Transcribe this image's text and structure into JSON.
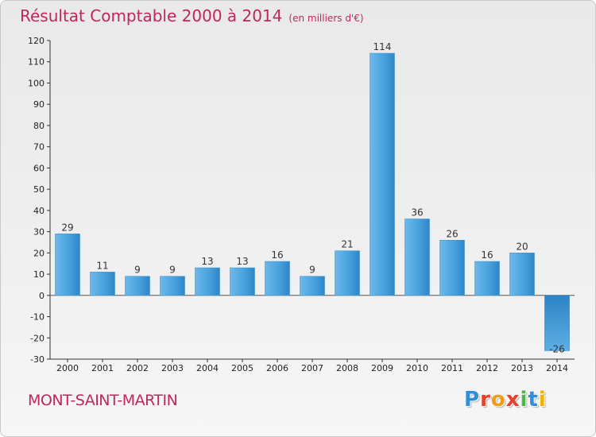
{
  "title": "Résultat Comptable 2000 à 2014",
  "subtitle": "(en milliers d'€)",
  "commune": "MONT-SAINT-MARTIN",
  "logo": "Proxiti",
  "colors": {
    "title": "#c0265a",
    "bar_light": "#5aaee6",
    "bar_dark": "#2a7fbe",
    "logo_letters": [
      "#2f8fd8",
      "#e8402a",
      "#f39c12",
      "#e8402a",
      "#49b649",
      "#2f8fd8",
      "#f0b400"
    ]
  },
  "chart_data": {
    "type": "bar",
    "categories": [
      "2000",
      "2001",
      "2002",
      "2003",
      "2004",
      "2005",
      "2006",
      "2007",
      "2008",
      "2009",
      "2010",
      "2011",
      "2012",
      "2013",
      "2014"
    ],
    "values": [
      29,
      11,
      9,
      9,
      13,
      13,
      16,
      9,
      21,
      114,
      36,
      26,
      16,
      20,
      -26
    ],
    "ylim": [
      -30,
      120
    ],
    "yticks": [
      -30,
      -20,
      -10,
      0,
      10,
      20,
      30,
      40,
      50,
      60,
      70,
      80,
      90,
      100,
      110,
      120
    ],
    "grid": false,
    "data_labels": true
  }
}
